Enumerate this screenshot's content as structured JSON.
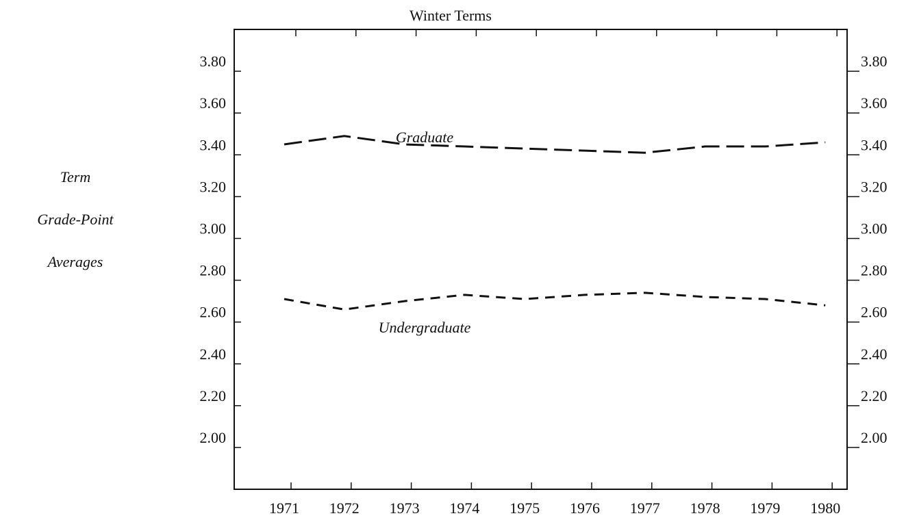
{
  "chart_data": {
    "type": "line",
    "title": "Winter Terms",
    "y_label": [
      "Term",
      "Grade-Point",
      "Averages"
    ],
    "categories": [
      "1971",
      "1972",
      "1973",
      "1974",
      "1975",
      "1976",
      "1977",
      "1978",
      "1979",
      "1980"
    ],
    "series": [
      {
        "name": "Graduate",
        "color": "#111111",
        "dash": "26 10",
        "values": [
          3.45,
          3.49,
          3.45,
          3.44,
          3.43,
          3.42,
          3.41,
          3.44,
          3.44,
          3.46
        ]
      },
      {
        "name": "Undergraduate",
        "color": "#111111",
        "dash": "14 10",
        "values": [
          2.71,
          2.66,
          2.7,
          2.73,
          2.71,
          2.73,
          2.74,
          2.72,
          2.71,
          2.68
        ]
      }
    ],
    "ylim": [
      1.8,
      4.0
    ],
    "yticks": [
      {
        "value": 2.0,
        "label": "2.00"
      },
      {
        "value": 2.2,
        "label": "2.20"
      },
      {
        "value": 2.4,
        "label": "2.40"
      },
      {
        "value": 2.6,
        "label": "2.60"
      },
      {
        "value": 2.8,
        "label": "2.80"
      },
      {
        "value": 3.0,
        "label": "3.00"
      },
      {
        "value": 3.2,
        "label": "3.20"
      },
      {
        "value": 3.4,
        "label": "3.40"
      },
      {
        "value": 3.6,
        "label": "3.60"
      },
      {
        "value": 3.8,
        "label": "3.80"
      }
    ],
    "mirror_y": true,
    "grid": false
  }
}
